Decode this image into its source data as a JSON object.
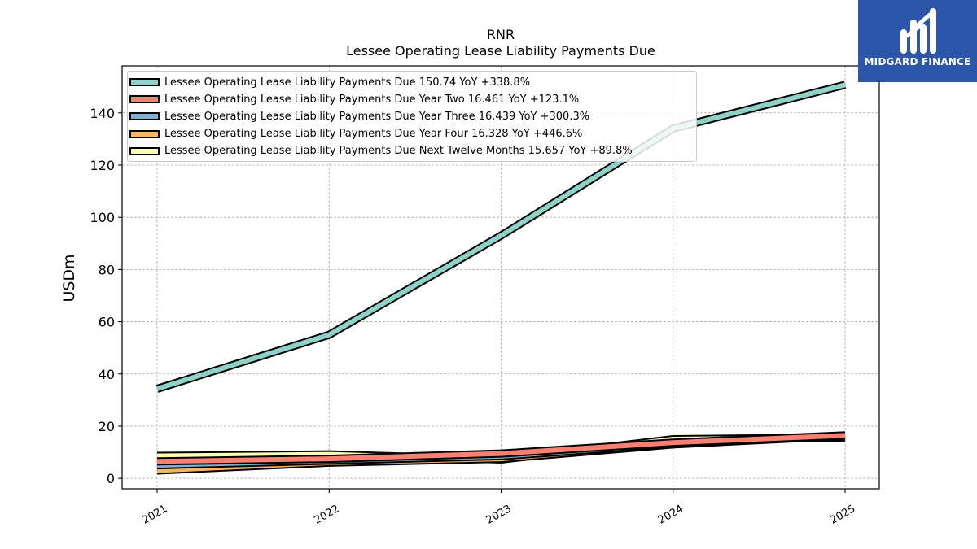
{
  "header": {
    "title": "RNR",
    "subtitle": "Lessee Operating Lease Liability Payments Due"
  },
  "logo": {
    "text": "MIDGARD FINANCE",
    "color": "#2d55a8"
  },
  "chart_data": {
    "type": "line",
    "x": [
      "2021",
      "2022",
      "2023",
      "2024",
      "2025"
    ],
    "ylabel": "USDm",
    "ylim": [
      -4,
      158
    ],
    "yticks": [
      0,
      20,
      40,
      60,
      80,
      100,
      120,
      140
    ],
    "grid": true,
    "legend_position": "top-left",
    "series": [
      {
        "name": "Lessee Operating Lease Liability Payments Due",
        "legend": "Lessee Operating Lease Liability Payments Due  150.74 YoY +338.8%",
        "color": "#8dd3c7",
        "values": [
          34.3,
          55.0,
          93.0,
          134.0,
          150.74
        ]
      },
      {
        "name": "Lessee Operating Lease Liability Payments Due Year Two",
        "legend": "Lessee Operating Lease Liability Payments Due Year Two  16.461 YoY +123.1%",
        "color": "#fb8072",
        "values": [
          6.5,
          7.5,
          9.5,
          13.7,
          16.461
        ]
      },
      {
        "name": "Lessee Operating Lease Liability Payments Due Year Three",
        "legend": "Lessee Operating Lease Liability Payments Due Year Three  16.439 YoY +300.3%",
        "color": "#80b1d3",
        "values": [
          5.0,
          6.8,
          8.5,
          13.2,
          16.439
        ]
      },
      {
        "name": "Lessee Operating Lease Liability Payments Due Year Four",
        "legend": "Lessee Operating Lease Liability Payments Due Year Four  16.328 YoY +446.6%",
        "color": "#fdb462",
        "values": [
          3.0,
          6.0,
          7.5,
          13.0,
          16.328
        ]
      },
      {
        "name": "Lessee Operating Lease Liability Payments Due Next Twelve Months",
        "legend": "Lessee Operating Lease Liability Payments Due Next Twelve Months  15.657 YoY +89.8%",
        "color": "#ffffb3",
        "values": [
          8.6,
          9.2,
          7.2,
          15.0,
          15.657
        ]
      }
    ]
  }
}
